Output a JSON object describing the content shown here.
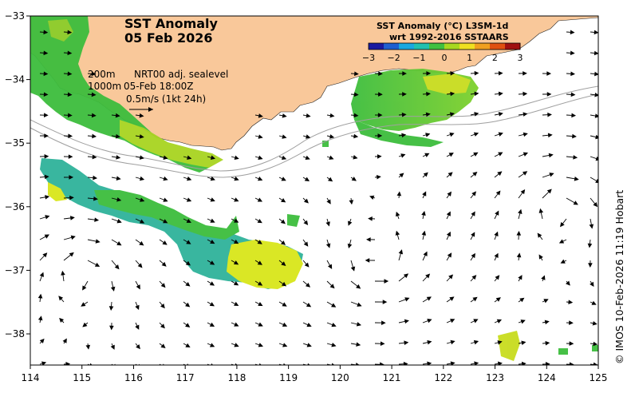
{
  "title": {
    "line1": "SST Anomaly",
    "line2": "05 Feb 2026"
  },
  "legend": {
    "row1_left": "200m",
    "row1_right": "NRT00 adj. sealevel",
    "row2_left": "1000m",
    "row2_right": "05-Feb 18:00Z",
    "scale": "0.5m/s (1kt 24h)"
  },
  "colorbar": {
    "title_line1": "SST Anomaly (°C) L3SM-1d",
    "title_line2": "wrt 1992-2016 SSTAARS",
    "ticks": [
      "−3",
      "−2",
      "−1",
      "0",
      "1",
      "2",
      "3"
    ],
    "colors": [
      "#1a1aa0",
      "#1f5fd0",
      "#19a8e0",
      "#20c0b0",
      "#40c040",
      "#a8d820",
      "#f0e020",
      "#f0a020",
      "#e05010",
      "#a01010"
    ]
  },
  "axes": {
    "x_ticks": [
      "114",
      "115",
      "116",
      "117",
      "118",
      "119",
      "120",
      "121",
      "122",
      "123",
      "124",
      "125"
    ],
    "y_ticks": [
      "−33",
      "−34",
      "−35",
      "−36",
      "−37",
      "−38"
    ]
  },
  "side_label": "© IMOS 10-Feb-2026 11:19 Hobart",
  "colors": {
    "land": "#f9c89a",
    "anomaly_green": "#3dbd3d",
    "anomaly_teal": "#2fb39a",
    "anomaly_yellow": "#d9e61a"
  }
}
